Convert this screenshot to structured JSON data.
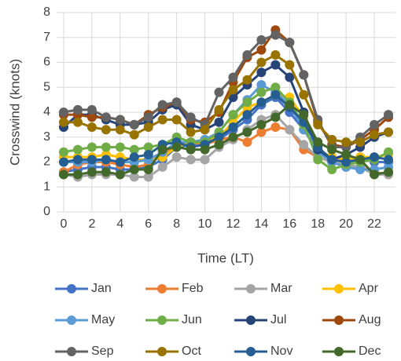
{
  "chart_data": {
    "type": "line",
    "x": [
      0,
      1,
      2,
      3,
      4,
      5,
      6,
      7,
      8,
      9,
      10,
      11,
      12,
      13,
      14,
      15,
      16,
      17,
      18,
      19,
      20,
      21,
      22,
      23
    ],
    "xlim": [
      -0.5,
      23.5
    ],
    "xticks": [
      0,
      2,
      4,
      6,
      8,
      10,
      12,
      14,
      16,
      18,
      20,
      22
    ],
    "ylim": [
      0,
      8
    ],
    "yticks": [
      0,
      1,
      2,
      3,
      4,
      5,
      6,
      7,
      8
    ],
    "x_label": "Time (LT)",
    "y_label": "Crosswind (knots)",
    "grid": true,
    "legend": "bottom",
    "series": [
      {
        "name": "Jan",
        "color": "#4472c4",
        "values": [
          1.6,
          1.7,
          1.8,
          1.8,
          1.7,
          1.7,
          1.8,
          2.1,
          2.6,
          2.7,
          2.8,
          2.9,
          3.3,
          3.7,
          4.3,
          4.6,
          4.0,
          3.3,
          2.5,
          2.1,
          2.0,
          2.2,
          2.0,
          2.0
        ]
      },
      {
        "name": "Feb",
        "color": "#ed7d31",
        "values": [
          1.6,
          1.9,
          2.0,
          2.0,
          1.9,
          1.8,
          1.9,
          2.3,
          2.7,
          2.8,
          2.7,
          2.9,
          3.0,
          2.8,
          3.2,
          3.4,
          3.3,
          2.5,
          2.2,
          2.0,
          1.8,
          1.8,
          1.6,
          1.5
        ]
      },
      {
        "name": "Mar",
        "color": "#a5a5a5",
        "values": [
          1.5,
          1.4,
          1.5,
          1.5,
          1.5,
          1.4,
          1.4,
          1.8,
          2.2,
          2.1,
          2.1,
          2.6,
          2.9,
          3.3,
          3.7,
          3.9,
          3.3,
          2.7,
          2.2,
          2.0,
          1.9,
          1.8,
          1.5,
          1.5
        ]
      },
      {
        "name": "Apr",
        "color": "#ffc000",
        "values": [
          2.2,
          2.2,
          2.2,
          2.3,
          2.2,
          2.1,
          2.1,
          2.2,
          2.6,
          2.8,
          2.9,
          3.0,
          3.6,
          4.2,
          4.4,
          4.7,
          4.6,
          3.8,
          2.5,
          2.2,
          2.1,
          2.2,
          2.2,
          2.3
        ]
      },
      {
        "name": "May",
        "color": "#5b9bd5",
        "values": [
          2.0,
          2.0,
          2.0,
          2.1,
          2.0,
          2.0,
          2.1,
          2.4,
          2.8,
          2.8,
          2.9,
          3.2,
          3.9,
          4.5,
          5.1,
          4.8,
          4.3,
          3.3,
          2.4,
          2.0,
          1.8,
          1.7,
          1.7,
          1.8
        ]
      },
      {
        "name": "Jun",
        "color": "#70ad47",
        "values": [
          2.4,
          2.5,
          2.6,
          2.6,
          2.6,
          2.5,
          2.6,
          2.7,
          3.0,
          2.8,
          2.8,
          3.2,
          3.9,
          4.4,
          4.8,
          5.0,
          4.4,
          3.5,
          2.1,
          1.7,
          1.9,
          2.0,
          2.1,
          2.4
        ]
      },
      {
        "name": "Jul",
        "color": "#264478",
        "values": [
          3.4,
          3.9,
          3.9,
          3.7,
          3.5,
          3.5,
          3.6,
          4.1,
          4.3,
          3.5,
          3.3,
          3.6,
          4.6,
          5.1,
          5.6,
          5.9,
          5.4,
          4.0,
          2.5,
          2.1,
          2.3,
          2.6,
          3.0,
          3.2
        ]
      },
      {
        "name": "Aug",
        "color": "#9e480e",
        "values": [
          3.9,
          3.9,
          3.8,
          3.8,
          3.7,
          3.5,
          3.9,
          4.2,
          4.4,
          3.7,
          3.6,
          4.0,
          5.2,
          6.2,
          6.5,
          7.3,
          6.8,
          5.5,
          3.6,
          2.7,
          2.6,
          2.9,
          3.3,
          3.8
        ]
      },
      {
        "name": "Sep",
        "color": "#636363",
        "values": [
          4.0,
          4.1,
          4.1,
          3.8,
          3.7,
          3.5,
          3.8,
          4.3,
          4.4,
          3.8,
          3.5,
          4.8,
          5.4,
          6.3,
          6.9,
          7.1,
          6.8,
          5.5,
          3.7,
          2.6,
          2.6,
          3.0,
          3.5,
          3.9
        ]
      },
      {
        "name": "Oct",
        "color": "#997300",
        "values": [
          3.6,
          3.6,
          3.4,
          3.3,
          3.3,
          3.1,
          3.4,
          3.7,
          3.7,
          3.2,
          3.3,
          4.1,
          4.9,
          5.3,
          6.0,
          6.3,
          5.9,
          4.7,
          3.5,
          2.9,
          2.8,
          2.8,
          3.1,
          3.2
        ]
      },
      {
        "name": "Nov",
        "color": "#255e91",
        "values": [
          2.0,
          2.1,
          2.1,
          2.1,
          2.0,
          2.2,
          2.3,
          2.7,
          2.8,
          2.6,
          2.7,
          3.0,
          3.4,
          3.9,
          4.4,
          4.7,
          4.2,
          3.6,
          2.6,
          2.1,
          2.0,
          2.1,
          2.2,
          2.1
        ]
      },
      {
        "name": "Dec",
        "color": "#43682b",
        "values": [
          1.5,
          1.5,
          1.6,
          1.6,
          1.5,
          1.7,
          1.7,
          2.5,
          2.6,
          2.5,
          2.5,
          2.7,
          3.0,
          3.2,
          3.5,
          3.8,
          4.3,
          3.9,
          2.8,
          2.5,
          2.3,
          2.1,
          1.5,
          1.6
        ]
      }
    ]
  }
}
